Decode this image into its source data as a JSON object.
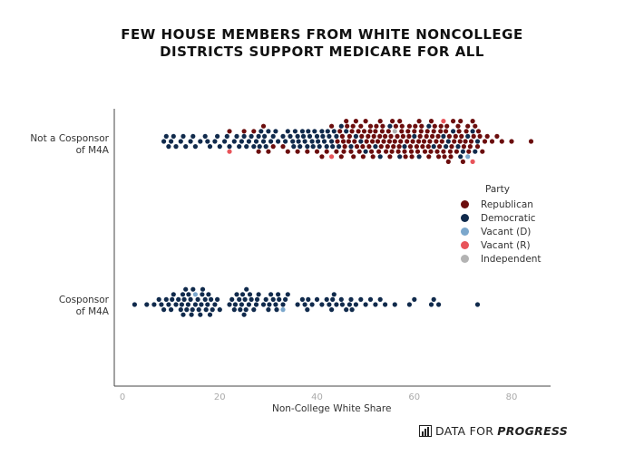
{
  "title_line1": "FEW HOUSE MEMBERS FROM WHITE NONCOLLEGE",
  "title_line2": "DISTRICTS SUPPORT MEDICARE FOR ALL",
  "brand": {
    "prefix": "DATA FOR",
    "emphasis": "PROGRESS"
  },
  "chart_data": {
    "type": "scatter",
    "title": "FEW HOUSE MEMBERS FROM WHITE NONCOLLEGE DISTRICTS SUPPORT MEDICARE FOR ALL",
    "xlabel": "Non-College White Share",
    "xlim": [
      0,
      85
    ],
    "xticks": [
      0,
      20,
      40,
      60,
      80
    ],
    "grid": false,
    "categories": [
      "Not a Cosponsor of M4A",
      "Cosponsor of M4A"
    ],
    "category_labels": [
      [
        "Not a Cosponsor",
        "of M4A"
      ],
      [
        "Cosponsor",
        "of M4A"
      ]
    ],
    "legend": {
      "title": "Party",
      "placement": "right",
      "entries": [
        {
          "name": "Republican",
          "color": "#6b0d0d"
        },
        {
          "name": "Democratic",
          "color": "#102a4c"
        },
        {
          "name": "Vacant (D)",
          "color": "#7ba7cc"
        },
        {
          "name": "Vacant (R)",
          "color": "#e8545a"
        },
        {
          "name": "Independent",
          "color": "#b3b3b3"
        }
      ]
    },
    "series": [
      {
        "name": "Democratic",
        "category": "Not a Cosponsor of M4A",
        "values": [
          9,
          9.5,
          10,
          11,
          12,
          13,
          14,
          15,
          16,
          17,
          18,
          19,
          20,
          21,
          22,
          23,
          24,
          24.5,
          25,
          26,
          27,
          27.5,
          28,
          28.5,
          29,
          29.5,
          30,
          30.5,
          31,
          32,
          33,
          34,
          34.5,
          35,
          35.5,
          36,
          36.5,
          37,
          37.5,
          38,
          38.5,
          39,
          39.5,
          40,
          40.5,
          41,
          41.5,
          42,
          42.5,
          43,
          43.5,
          44,
          45,
          46,
          47,
          48,
          50,
          52,
          55,
          58,
          60,
          63,
          66,
          67,
          68,
          69,
          70,
          71,
          72,
          73,
          8.5,
          10.5,
          12.5,
          14.5,
          17.5,
          19.5,
          21.5,
          23.5,
          25.5,
          26.5,
          28.2,
          29.2,
          31.5,
          33.5,
          35.2,
          36.2,
          37.2,
          38.2,
          39.2,
          40.2,
          41.2,
          42.2,
          43.2,
          44.5,
          49,
          53,
          57,
          61,
          64,
          66.5,
          69.5,
          72.5
        ]
      },
      {
        "name": "Republican",
        "category": "Not a Cosponsor of M4A",
        "values": [
          22,
          25,
          27,
          28,
          29,
          30,
          31,
          33,
          34,
          36,
          38,
          40,
          41,
          42,
          43,
          44,
          45,
          45.5,
          46,
          46.5,
          47,
          47.5,
          48,
          48.5,
          49,
          49.5,
          50,
          50.5,
          51,
          51.5,
          52,
          52.5,
          53,
          53.5,
          54,
          54.5,
          55,
          55.5,
          56,
          56.5,
          57,
          57.5,
          58,
          58.5,
          59,
          59.5,
          60,
          60.5,
          61,
          61.5,
          62,
          62.5,
          63,
          63.5,
          64,
          64.5,
          65,
          65.5,
          66,
          66.5,
          67,
          67.5,
          68,
          68.5,
          69,
          69.5,
          70,
          70.5,
          71,
          71.5,
          72,
          72.5,
          73,
          73.5,
          74,
          74.5,
          75,
          76,
          77,
          78,
          80,
          84,
          44.2,
          45.2,
          46.2,
          47.2,
          48.2,
          49.2,
          50.2,
          51.2,
          52.2,
          53.2,
          54.2,
          55.2,
          56.2,
          57.2,
          58.2,
          59.2,
          60.2,
          61.2,
          62.2,
          63.2,
          64.2,
          65.2,
          66.2,
          67.2,
          68.2,
          69.2,
          70.2,
          71.2,
          72.2,
          73.2,
          44.7,
          45.7,
          46.7,
          47.7,
          48.7,
          49.7,
          50.7,
          51.7,
          52.7,
          53.7,
          54.7,
          55.7,
          56.7,
          57.7,
          58.7,
          59.7,
          60.7,
          61.7,
          62.7,
          63.7,
          64.7,
          65.7,
          66.7,
          67.7,
          68.7,
          69.7,
          70.7,
          71.7,
          45.4,
          47.4,
          49.4,
          51.4,
          53.4,
          55.4,
          57.4,
          59.4,
          61.4,
          63.4,
          65.4,
          67.4,
          69.4,
          50.9,
          52.9,
          54.9,
          56.9,
          58.9,
          60.9,
          62.9,
          64.9
        ]
      },
      {
        "name": "Vacant (D)",
        "category": "Not a Cosponsor of M4A",
        "values": [
          71
        ]
      },
      {
        "name": "Vacant (R)",
        "category": "Not a Cosponsor of M4A",
        "values": [
          22,
          43,
          66,
          72
        ]
      },
      {
        "name": "Independent",
        "category": "Not a Cosponsor of M4A",
        "values": [
          56
        ]
      },
      {
        "name": "Democratic",
        "category": "Cosponsor of M4A",
        "values": [
          2.5,
          5,
          6.5,
          7.5,
          8,
          8.5,
          9,
          9.5,
          10,
          10.5,
          11,
          11.5,
          12,
          12.5,
          13,
          13.5,
          14,
          14.5,
          15,
          15.5,
          16,
          16.5,
          17,
          17.5,
          18,
          18.5,
          19,
          19.5,
          20,
          22,
          22.5,
          23,
          23.5,
          24,
          24.5,
          25,
          25.5,
          26,
          26.5,
          27,
          27.5,
          28,
          29,
          29.5,
          30,
          30.5,
          31,
          31.5,
          32,
          33,
          33.5,
          34,
          36,
          37,
          37.5,
          38,
          39,
          40,
          41,
          42,
          42.5,
          43,
          43.5,
          44,
          45,
          46,
          47,
          48,
          49,
          50,
          51,
          52,
          53,
          54,
          56,
          59,
          60,
          63.5,
          64,
          65,
          73,
          10.2,
          12.2,
          13.2,
          14.2,
          16.2,
          17.2,
          18.2,
          23.2,
          24.2,
          25.2,
          26.2,
          30.2,
          32.2,
          38.2,
          43.2,
          45.2,
          47.2,
          12.7,
          15.7,
          17.7,
          24.7,
          27.7,
          31.7,
          46.7,
          12.4,
          14.4,
          16.4,
          25.4,
          13.6
        ]
      },
      {
        "name": "Vacant (D)",
        "category": "Cosponsor of M4A",
        "values": [
          15,
          33
        ]
      }
    ]
  }
}
